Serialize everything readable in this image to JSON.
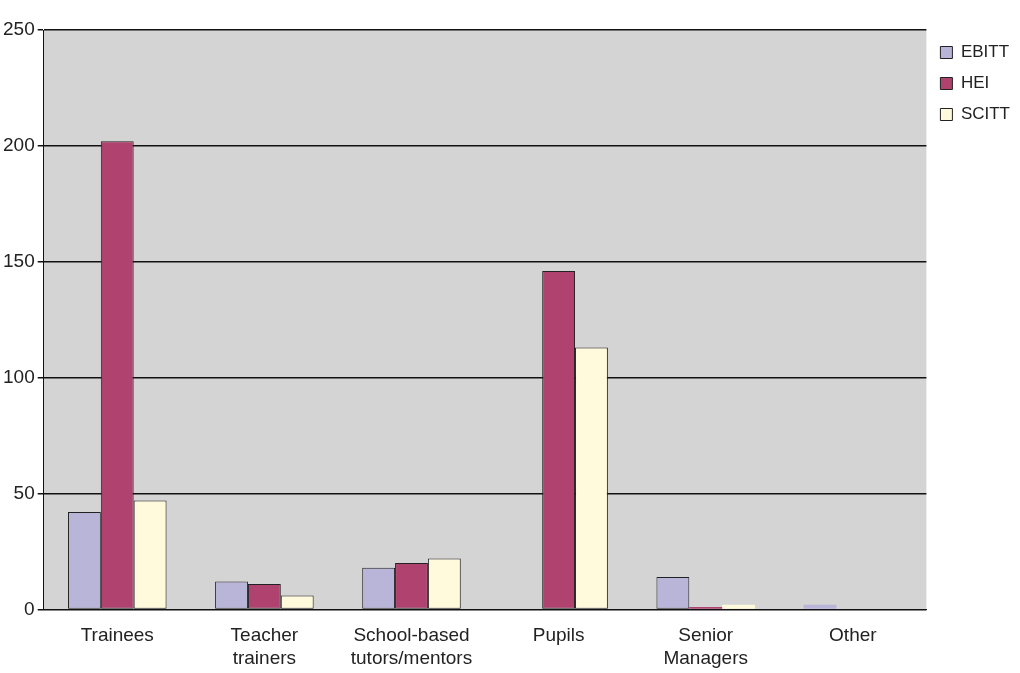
{
  "chart_data": {
    "type": "bar",
    "categories": [
      "Trainees",
      "Teacher trainers",
      "School-based tutors/mentors",
      "Pupils",
      "Senior Managers",
      "Other"
    ],
    "series": [
      {
        "name": "EBITT",
        "color": "#b8b5d8",
        "values": [
          42,
          12,
          18,
          0,
          14,
          2
        ]
      },
      {
        "name": "HEI",
        "color": "#b0426f",
        "values": [
          202,
          11,
          20,
          146,
          1,
          0
        ]
      },
      {
        "name": "SCITT",
        "color": "#fffadc",
        "values": [
          47,
          6,
          22,
          113,
          2,
          0
        ]
      }
    ],
    "ylim": [
      0,
      250
    ],
    "yticks": [
      0,
      50,
      100,
      150,
      200,
      250
    ],
    "grid": "y",
    "legend": "top right"
  }
}
